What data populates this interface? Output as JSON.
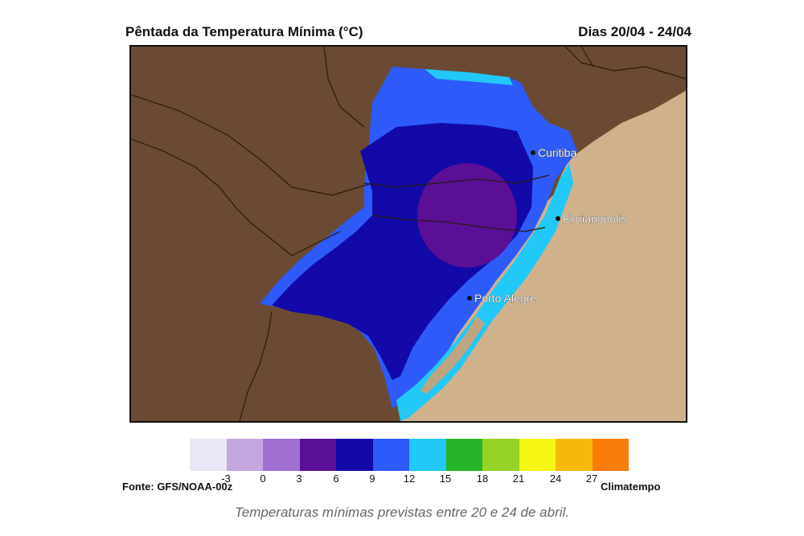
{
  "title": "Pêntada da Temperatura Mínima (°C)",
  "date_range": "Dias 20/04 - 24/04",
  "cities": [
    "Curitiba",
    "Florianopolis",
    "Porto Alegre"
  ],
  "legend": {
    "colors": [
      "#ebe6f5",
      "#c3a6de",
      "#a070d2",
      "#5a0f96",
      "#1209a8",
      "#2d5af8",
      "#22c8f8",
      "#28b428",
      "#96d228",
      "#f5f514",
      "#f5b90a",
      "#fa7d0a"
    ],
    "ticks": [
      "-3",
      "0",
      "3",
      "6",
      "9",
      "12",
      "15",
      "18",
      "21",
      "24",
      "27"
    ]
  },
  "source": "Fonte: GFS/NOAA-00z",
  "credit": "Climatempo",
  "caption": "Temperaturas mínimas previstas entre 20 e 24 de abril.",
  "colors": {
    "land": "#6b4a33",
    "ocean": "#cfb28c",
    "border": "#2a1a10"
  }
}
